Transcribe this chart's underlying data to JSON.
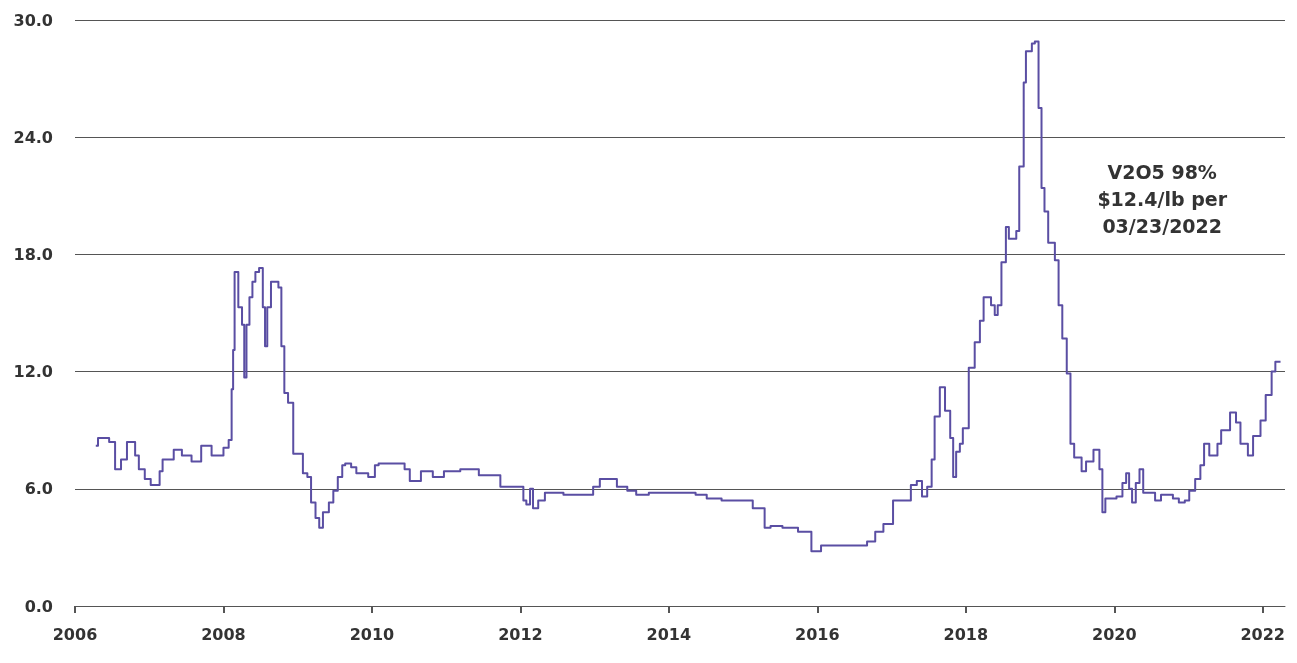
{
  "chart_data": {
    "type": "step",
    "x": [
      2006.28,
      2006.31,
      2006.46,
      2006.54,
      2006.62,
      2006.7,
      2006.81,
      2006.86,
      2006.94,
      2007.02,
      2007.14,
      2007.18,
      2007.33,
      2007.44,
      2007.57,
      2007.7,
      2007.84,
      2008.0,
      2008.07,
      2008.11,
      2008.13,
      2008.15,
      2008.2,
      2008.25,
      2008.28,
      2008.31,
      2008.35,
      2008.39,
      2008.43,
      2008.48,
      2008.53,
      2008.56,
      2008.59,
      2008.64,
      2008.74,
      2008.78,
      2008.82,
      2008.87,
      2008.94,
      2009.07,
      2009.13,
      2009.18,
      2009.24,
      2009.29,
      2009.34,
      2009.42,
      2009.48,
      2009.54,
      2009.6,
      2009.64,
      2009.72,
      2009.79,
      2009.95,
      2010.04,
      2010.09,
      2010.44,
      2010.51,
      2010.66,
      2010.82,
      2010.97,
      2011.19,
      2011.44,
      2011.73,
      2012.04,
      2012.08,
      2012.13,
      2012.17,
      2012.24,
      2012.33,
      2012.44,
      2012.58,
      2012.98,
      2013.07,
      2013.3,
      2013.44,
      2013.56,
      2013.73,
      2014.36,
      2014.51,
      2014.71,
      2015.13,
      2015.29,
      2015.37,
      2015.53,
      2015.74,
      2015.92,
      2016.05,
      2016.67,
      2016.78,
      2016.89,
      2017.02,
      2017.26,
      2017.34,
      2017.41,
      2017.48,
      2017.54,
      2017.58,
      2017.65,
      2017.72,
      2017.79,
      2017.83,
      2017.87,
      2017.92,
      2017.96,
      2018.04,
      2018.12,
      2018.19,
      2018.24,
      2018.34,
      2018.39,
      2018.43,
      2018.48,
      2018.54,
      2018.58,
      2018.68,
      2018.72,
      2018.78,
      2018.81,
      2018.89,
      2018.93,
      2018.98,
      2019.02,
      2019.06,
      2019.11,
      2019.2,
      2019.25,
      2019.3,
      2019.36,
      2019.41,
      2019.46,
      2019.56,
      2019.62,
      2019.72,
      2019.8,
      2019.84,
      2019.88,
      2020.03,
      2020.11,
      2020.16,
      2020.2,
      2020.24,
      2020.29,
      2020.34,
      2020.39,
      2020.55,
      2020.63,
      2020.79,
      2020.87,
      2020.95,
      2021.01,
      2021.09,
      2021.16,
      2021.21,
      2021.28,
      2021.39,
      2021.44,
      2021.56,
      2021.64,
      2021.7,
      2021.8,
      2021.87,
      2021.97,
      2022.04,
      2022.12,
      2022.17,
      2022.24
    ],
    "series": [
      {
        "color": "#5a4ea3",
        "values": [
          8.2,
          8.6,
          8.4,
          7.0,
          7.5,
          8.4,
          7.7,
          7.0,
          6.5,
          6.2,
          6.9,
          7.5,
          8.0,
          7.7,
          7.4,
          8.2,
          7.7,
          8.1,
          8.5,
          11.1,
          13.1,
          17.1,
          15.3,
          14.4,
          11.7,
          14.4,
          15.8,
          16.6,
          17.1,
          17.3,
          15.3,
          13.3,
          15.3,
          16.6,
          16.3,
          13.3,
          10.9,
          10.4,
          7.8,
          6.8,
          6.6,
          5.3,
          4.5,
          4.0,
          4.8,
          5.3,
          5.9,
          6.6,
          7.2,
          7.3,
          7.1,
          6.8,
          6.6,
          7.2,
          7.3,
          7.0,
          6.4,
          6.9,
          6.6,
          6.9,
          7.0,
          6.7,
          6.1,
          5.4,
          5.2,
          6.0,
          5.0,
          5.4,
          5.8,
          5.8,
          5.7,
          6.1,
          6.5,
          6.1,
          5.9,
          5.7,
          5.8,
          5.7,
          5.5,
          5.4,
          5.0,
          4.0,
          4.1,
          4.0,
          3.8,
          2.8,
          3.1,
          3.3,
          3.8,
          4.2,
          5.4,
          6.2,
          6.4,
          5.6,
          6.1,
          7.5,
          9.7,
          11.2,
          10.0,
          8.6,
          6.6,
          7.9,
          8.3,
          9.1,
          12.2,
          13.5,
          14.6,
          15.8,
          15.4,
          14.9,
          15.4,
          17.6,
          19.4,
          18.8,
          19.2,
          22.5,
          26.8,
          28.4,
          28.8,
          28.9,
          25.5,
          21.4,
          20.2,
          18.6,
          17.7,
          15.4,
          13.7,
          11.9,
          8.3,
          7.6,
          6.9,
          7.4,
          8.0,
          7.0,
          4.8,
          5.5,
          5.6,
          6.3,
          6.8,
          6.0,
          5.3,
          6.3,
          7.0,
          5.8,
          5.4,
          5.7,
          5.5,
          5.3,
          5.4,
          5.9,
          6.5,
          7.2,
          8.3,
          7.7,
          8.3,
          9.0,
          9.9,
          9.4,
          8.3,
          7.7,
          8.7,
          9.5,
          10.8,
          12.0,
          12.5,
          12.5
        ]
      }
    ],
    "xlim": [
      2006,
      2022.3
    ],
    "xticks": [
      2006,
      2008,
      2010,
      2012,
      2014,
      2016,
      2018,
      2020,
      2022
    ],
    "ylim": [
      0,
      30
    ],
    "yticks": [
      {
        "value": 0,
        "label": "0.0"
      },
      {
        "value": 6,
        "label": "6.0"
      },
      {
        "value": 12,
        "label": "12.0"
      },
      {
        "value": 18,
        "label": "18.0"
      },
      {
        "value": 24,
        "label": "24.0"
      },
      {
        "value": 30,
        "label": "30.0"
      }
    ],
    "grid": "y",
    "annotations": [
      "V2O5 98%\n$12.4/lb per\n03/23/2022"
    ]
  }
}
